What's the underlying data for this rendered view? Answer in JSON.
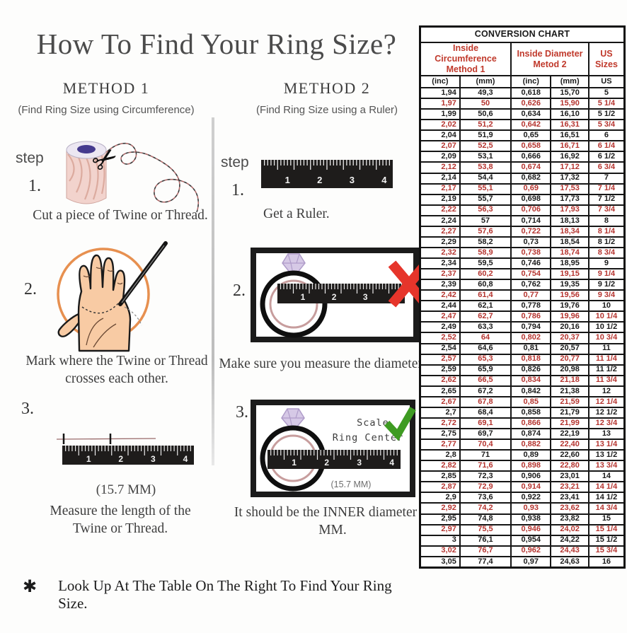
{
  "title": "How To Find Your Ring Size?",
  "method1": {
    "heading": "METHOD 1",
    "subheading": "(Find Ring Size using Circumference)",
    "step_label": "step",
    "steps": [
      {
        "number": "1.",
        "text": "Cut a piece of  Twine or Thread."
      },
      {
        "number": "2.",
        "text": "Mark where the Twine or Thread crosses each other."
      },
      {
        "number": "3.",
        "note": "(15.7 MM)",
        "text": "Measure the length of the Twine or Thread."
      }
    ]
  },
  "method2": {
    "heading": "METHOD 2",
    "subheading": "(Find Ring Size using a Ruler)",
    "step_label": "step",
    "steps": [
      {
        "number": "1.",
        "text": "Get a Ruler."
      },
      {
        "number": "2.",
        "text": "Make sure you measure the diameter."
      },
      {
        "number": "3.",
        "scale_label_line1": "Scale",
        "scale_label_line2": "Ring Center",
        "note": "(15.7 MM)",
        "text": "It should be the INNER diameter in MM."
      }
    ]
  },
  "footnote": {
    "bullet": "✱",
    "text": "Look Up At The Table On The Right To Find Your Ring Size."
  },
  "ruler_numbers": [
    "1",
    "2",
    "3",
    "4"
  ],
  "table": {
    "title": "CONVERSION CHART",
    "group_headers": [
      {
        "line1": "Inside Circumference",
        "line2": "Method 1"
      },
      {
        "line1": "Inside Diameter",
        "line2": "Metod 2"
      },
      {
        "line1": "US Sizes"
      }
    ],
    "sub_headers": [
      "(inc)",
      "(mm)",
      "(inc)",
      "(mm)",
      "US"
    ],
    "rows": [
      [
        "1,94",
        "49,3",
        "0,618",
        "15,70",
        "5"
      ],
      [
        "1,97",
        "50",
        "0,626",
        "15,90",
        "5 1/4"
      ],
      [
        "1,99",
        "50,6",
        "0,634",
        "16,10",
        "5 1/2"
      ],
      [
        "2,02",
        "51,2",
        "0,642",
        "16,31",
        "5 3/4"
      ],
      [
        "2,04",
        "51,9",
        "0,65",
        "16,51",
        "6"
      ],
      [
        "2,07",
        "52,5",
        "0,658",
        "16,71",
        "6 1/4"
      ],
      [
        "2,09",
        "53,1",
        "0,666",
        "16,92",
        "6 1/2"
      ],
      [
        "2,12",
        "53,8",
        "0,674",
        "17,12",
        "6 3/4"
      ],
      [
        "2,14",
        "54,4",
        "0,682",
        "17,32",
        "7"
      ],
      [
        "2,17",
        "55,1",
        "0,69",
        "17,53",
        "7 1/4"
      ],
      [
        "2,19",
        "55,7",
        "0,698",
        "17,73",
        "7 1/2"
      ],
      [
        "2,22",
        "56,3",
        "0,706",
        "17,93",
        "7 3/4"
      ],
      [
        "2,24",
        "57",
        "0,714",
        "18,13",
        "8"
      ],
      [
        "2,27",
        "57,6",
        "0,722",
        "18,34",
        "8 1/4"
      ],
      [
        "2,29",
        "58,2",
        "0,73",
        "18,54",
        "8 1/2"
      ],
      [
        "2,32",
        "58,9",
        "0,738",
        "18,74",
        "8 3/4"
      ],
      [
        "2,34",
        "59,5",
        "0,746",
        "18,95",
        "9"
      ],
      [
        "2,37",
        "60,2",
        "0,754",
        "19,15",
        "9 1/4"
      ],
      [
        "2,39",
        "60,8",
        "0,762",
        "19,35",
        "9 1/2"
      ],
      [
        "2,42",
        "61,4",
        "0,77",
        "19,56",
        "9 3/4"
      ],
      [
        "2,44",
        "62,1",
        "0,778",
        "19,76",
        "10"
      ],
      [
        "2,47",
        "62,7",
        "0,786",
        "19,96",
        "10 1/4"
      ],
      [
        "2,49",
        "63,3",
        "0,794",
        "20,16",
        "10 1/2"
      ],
      [
        "2,52",
        "64",
        "0,802",
        "20,37",
        "10 3/4"
      ],
      [
        "2,54",
        "64,6",
        "0,81",
        "20,57",
        "11"
      ],
      [
        "2,57",
        "65,3",
        "0,818",
        "20,77",
        "11 1/4"
      ],
      [
        "2,59",
        "65,9",
        "0,826",
        "20,98",
        "11 1/2"
      ],
      [
        "2,62",
        "66,5",
        "0,834",
        "21,18",
        "11 3/4"
      ],
      [
        "2,65",
        "67,2",
        "0,842",
        "21,38",
        "12"
      ],
      [
        "2,67",
        "67,8",
        "0,85",
        "21,59",
        "12 1/4"
      ],
      [
        "2,7",
        "68,4",
        "0,858",
        "21,79",
        "12 1/2"
      ],
      [
        "2,72",
        "69,1",
        "0,866",
        "21,99",
        "12 3/4"
      ],
      [
        "2,75",
        "69,7",
        "0,874",
        "22,19",
        "13"
      ],
      [
        "2,77",
        "70,4",
        "0,882",
        "22,40",
        "13 1/4"
      ],
      [
        "2,8",
        "71",
        "0,89",
        "22,60",
        "13 1/2"
      ],
      [
        "2,82",
        "71,6",
        "0,898",
        "22,80",
        "13 3/4"
      ],
      [
        "2,85",
        "72,3",
        "0,906",
        "23,01",
        "14"
      ],
      [
        "2,87",
        "72,9",
        "0,914",
        "23,21",
        "14 1/4"
      ],
      [
        "2,9",
        "73,6",
        "0,922",
        "23,41",
        "14 1/2"
      ],
      [
        "2,92",
        "74,2",
        "0,93",
        "23,62",
        "14 3/4"
      ],
      [
        "2,95",
        "74,8",
        "0,938",
        "23,82",
        "15"
      ],
      [
        "2,97",
        "75,5",
        "0,946",
        "24,02",
        "15 1/4"
      ],
      [
        "3",
        "76,1",
        "0,954",
        "24,22",
        "15 1/2"
      ],
      [
        "3,02",
        "76,7",
        "0,962",
        "24,43",
        "15 3/4"
      ],
      [
        "3,05",
        "77,4",
        "0,97",
        "24,63",
        "16"
      ]
    ]
  },
  "colors": {
    "red_text": "#b5342f",
    "header_red": "#c0392b",
    "x_red": "#e6352b",
    "check_green": "#3e9b22",
    "hand_skin": "#f8cba4",
    "circle_orange": "#e79050"
  }
}
